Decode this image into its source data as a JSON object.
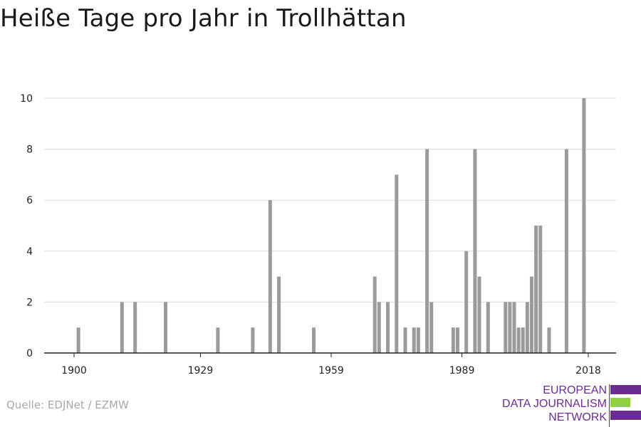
{
  "title": "Heiße Tage pro Jahr in Trollhättan",
  "source": "Quelle: EDJNet / EZMW",
  "logo": {
    "lines": [
      "EUROPEAN",
      "DATA JOURNALISM",
      "NETWORK"
    ],
    "colors": {
      "primary": "#6b2c91",
      "accent": "#8fd13f"
    }
  },
  "colors": {
    "bar": "#9b9b9b",
    "grid": "#d9d9d9",
    "axis": "#222222"
  },
  "chart_data": {
    "type": "bar",
    "title": "Heiße Tage pro Jahr in Trollhättan",
    "xlabel": "",
    "ylabel": "",
    "xlim": [
      1900,
      2018
    ],
    "ylim": [
      0,
      10
    ],
    "x_ticks": [
      "1900",
      "1929",
      "1959",
      "1989",
      "2018"
    ],
    "y_ticks": [
      "0",
      "2",
      "4",
      "6",
      "8",
      "10"
    ],
    "grid": true,
    "x": [
      1901,
      1911,
      1914,
      1921,
      1933,
      1941,
      1945,
      1947,
      1955,
      1969,
      1970,
      1972,
      1974,
      1976,
      1978,
      1979,
      1981,
      1982,
      1987,
      1988,
      1990,
      1992,
      1993,
      1995,
      1999,
      2000,
      2001,
      2002,
      2003,
      2004,
      2005,
      2006,
      2007,
      2009,
      2013,
      2017
    ],
    "values": [
      1,
      2,
      2,
      2,
      1,
      1,
      6,
      3,
      1,
      3,
      2,
      2,
      7,
      1,
      1,
      1,
      8,
      2,
      1,
      1,
      4,
      8,
      3,
      2,
      2,
      2,
      2,
      1,
      1,
      2,
      3,
      5,
      5,
      1,
      8,
      10
    ]
  }
}
